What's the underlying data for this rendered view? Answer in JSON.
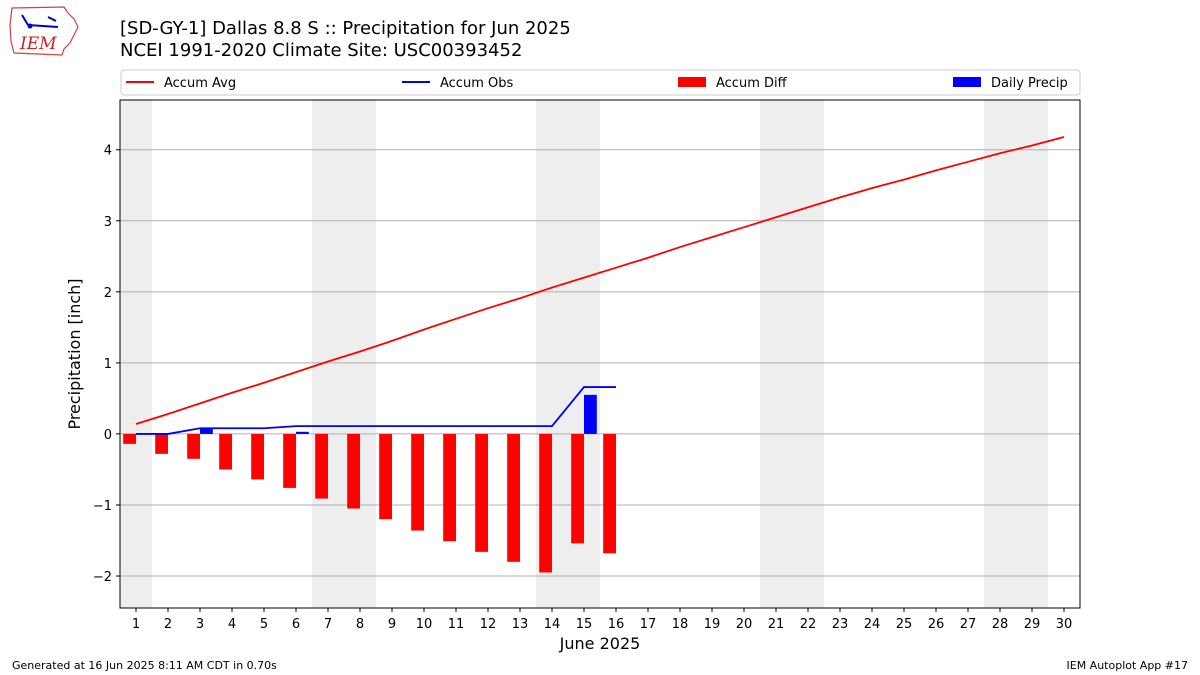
{
  "header": {
    "title_line1": "[SD-GY-1] Dallas 8.8 S :: Precipitation for Jun 2025",
    "title_line2": "NCEI 1991-2020 Climate Site: USC00393452",
    "logo_text": "IEM"
  },
  "footer": {
    "left": "Generated at 16 Jun 2025 8:11 AM CDT in 0.70s",
    "right": "IEM Autoplot App #17"
  },
  "colors": {
    "avg": "#ff0000",
    "obs": "#0000ff",
    "diff": "#ff0000",
    "daily": "#0000ff",
    "weekend_shade": "#eeeeee",
    "grid": "#b0b0b0"
  },
  "chart_data": {
    "type": "bar",
    "xlabel": "June 2025",
    "ylabel": "Precipitation [inch]",
    "xlim": [
      0.5,
      30.5
    ],
    "ylim": [
      -2.45,
      4.7
    ],
    "yticks": [
      -2,
      -1,
      0,
      1,
      2,
      3,
      4
    ],
    "ytick_labels": [
      "−2",
      "−1",
      "0",
      "1",
      "2",
      "3",
      "4"
    ],
    "grid": "horizontal",
    "legend_placement": "top",
    "legend": [
      "Accum Avg",
      "Accum Obs",
      "Accum Diff",
      "Daily Precip"
    ],
    "days": [
      1,
      2,
      3,
      4,
      5,
      6,
      7,
      8,
      9,
      10,
      11,
      12,
      13,
      14,
      15,
      16,
      17,
      18,
      19,
      20,
      21,
      22,
      23,
      24,
      25,
      26,
      27,
      28,
      29,
      30
    ],
    "shaded_weekend_days": [
      1,
      7,
      8,
      14,
      15,
      21,
      22,
      28,
      29
    ],
    "series": [
      {
        "name": "Accum Avg",
        "kind": "line",
        "values": [
          0.14,
          0.28,
          0.43,
          0.58,
          0.72,
          0.87,
          1.02,
          1.16,
          1.31,
          1.47,
          1.62,
          1.77,
          1.91,
          2.06,
          2.2,
          2.34,
          2.48,
          2.63,
          2.77,
          2.91,
          3.05,
          3.19,
          3.33,
          3.46,
          3.58,
          3.71,
          3.83,
          3.95,
          4.06,
          4.18
        ]
      },
      {
        "name": "Accum Obs",
        "kind": "line",
        "values": [
          0.0,
          0.0,
          0.08,
          0.08,
          0.08,
          0.11,
          0.11,
          0.11,
          0.11,
          0.11,
          0.11,
          0.11,
          0.11,
          0.11,
          0.66,
          0.66
        ]
      },
      {
        "name": "Accum Diff",
        "kind": "bar",
        "values": [
          -0.14,
          -0.28,
          -0.35,
          -0.5,
          -0.64,
          -0.76,
          -0.91,
          -1.05,
          -1.2,
          -1.36,
          -1.51,
          -1.66,
          -1.8,
          -1.95,
          -1.54,
          -1.68
        ]
      },
      {
        "name": "Daily Precip",
        "kind": "bar",
        "values": [
          0.0,
          0.0,
          0.08,
          0.0,
          0.0,
          0.03,
          0.0,
          0.0,
          0.0,
          0.0,
          0.0,
          0.0,
          0.0,
          0.0,
          0.55,
          0.0
        ]
      }
    ]
  }
}
